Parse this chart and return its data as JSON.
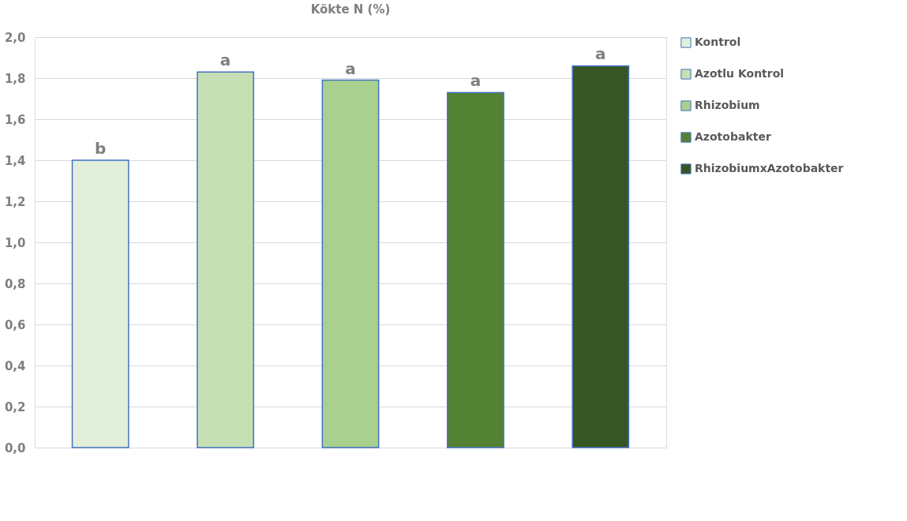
{
  "chart_data": {
    "type": "bar",
    "title": "Kökte N (%)",
    "categories": [
      null,
      null,
      null,
      null,
      null
    ],
    "series": [
      {
        "name": "Kontrol",
        "color": "#e2efda",
        "values": [
          1.4,
          null,
          null,
          null,
          null
        ]
      },
      {
        "name": "Azotlu Kontrol",
        "color": "#c6e0b4",
        "values": [
          null,
          1.83,
          null,
          null,
          null
        ]
      },
      {
        "name": "Rhizobium",
        "color": "#a9d08e",
        "values": [
          null,
          null,
          1.79,
          null,
          null
        ]
      },
      {
        "name": "Azotobakter",
        "color": "#548235",
        "values": [
          null,
          null,
          null,
          1.73,
          null
        ]
      },
      {
        "name": "RhizobiumxAzotobakter",
        "color": "#375623",
        "values": [
          null,
          null,
          null,
          null,
          1.86
        ]
      }
    ],
    "annotations": [
      {
        "text": "b",
        "y": 1.4
      },
      {
        "text": "a",
        "y": 1.83
      },
      {
        "text": "a",
        "y": 1.79
      },
      {
        "text": "a",
        "y": 1.73
      },
      {
        "text": "a",
        "y": 1.86
      }
    ],
    "ylim": [
      0,
      2.0
    ],
    "yticks": [
      {
        "value": 0,
        "label": "0,0"
      },
      {
        "value": 0.2,
        "label": "0,2"
      },
      {
        "value": 0.4,
        "label": "0,4"
      },
      {
        "value": 0.6,
        "label": "0,6"
      },
      {
        "value": 0.8,
        "label": "0,8"
      },
      {
        "value": 1.0,
        "label": "1,0"
      },
      {
        "value": 1.2,
        "label": "1,2"
      },
      {
        "value": 1.4,
        "label": "1,4"
      },
      {
        "value": 1.6,
        "label": "1,6"
      },
      {
        "value": 1.8,
        "label": "1,8"
      },
      {
        "value": 2.0,
        "label": "2,0"
      }
    ],
    "grid": "y",
    "legend": "right"
  }
}
